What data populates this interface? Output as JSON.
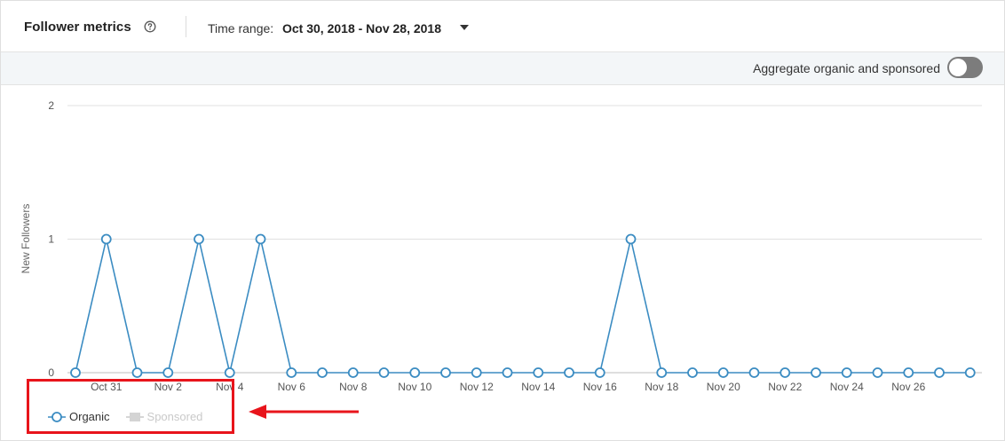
{
  "header": {
    "title": "Follower metrics",
    "help_icon": "help-circle-icon",
    "time_range_label": "Time range:",
    "time_range_value": "Oct 30, 2018 - Nov 28, 2018",
    "dropdown_icon": "caret-down-icon"
  },
  "toolbar": {
    "aggregate_label": "Aggregate organic and sponsored",
    "aggregate_on": false
  },
  "legend": {
    "organic_label": "Organic",
    "sponsored_label": "Sponsored"
  },
  "colors": {
    "series": "#3b8cc2",
    "highlight": "#e8141b",
    "sponsored_disabled": "#c9c9c9"
  },
  "chart_data": {
    "type": "line",
    "ylabel": "New Followers",
    "ylim": [
      0,
      2
    ],
    "y_ticks": [
      "0",
      "1",
      "2"
    ],
    "x_tick_labels": [
      "Oct 31",
      "Nov 2",
      "Nov 4",
      "Nov 6",
      "Nov 8",
      "Nov 10",
      "Nov 12",
      "Nov 14",
      "Nov 16",
      "Nov 18",
      "Nov 20",
      "Nov 22",
      "Nov 24",
      "Nov 26"
    ],
    "x": [
      "Oct 30",
      "Oct 31",
      "Nov 1",
      "Nov 2",
      "Nov 3",
      "Nov 4",
      "Nov 5",
      "Nov 6",
      "Nov 7",
      "Nov 8",
      "Nov 9",
      "Nov 10",
      "Nov 11",
      "Nov 12",
      "Nov 13",
      "Nov 14",
      "Nov 15",
      "Nov 16",
      "Nov 17",
      "Nov 18",
      "Nov 19",
      "Nov 20",
      "Nov 21",
      "Nov 22",
      "Nov 23",
      "Nov 24",
      "Nov 25",
      "Nov 26",
      "Nov 27",
      "Nov 28"
    ],
    "series": [
      {
        "name": "Organic",
        "values": [
          0,
          1,
          0,
          0,
          1,
          0,
          1,
          0,
          0,
          0,
          0,
          0,
          0,
          0,
          0,
          0,
          0,
          0,
          1,
          0,
          0,
          0,
          0,
          0,
          0,
          0,
          0,
          0,
          0,
          0
        ]
      }
    ],
    "legend": "bottom-left",
    "grid": true
  }
}
